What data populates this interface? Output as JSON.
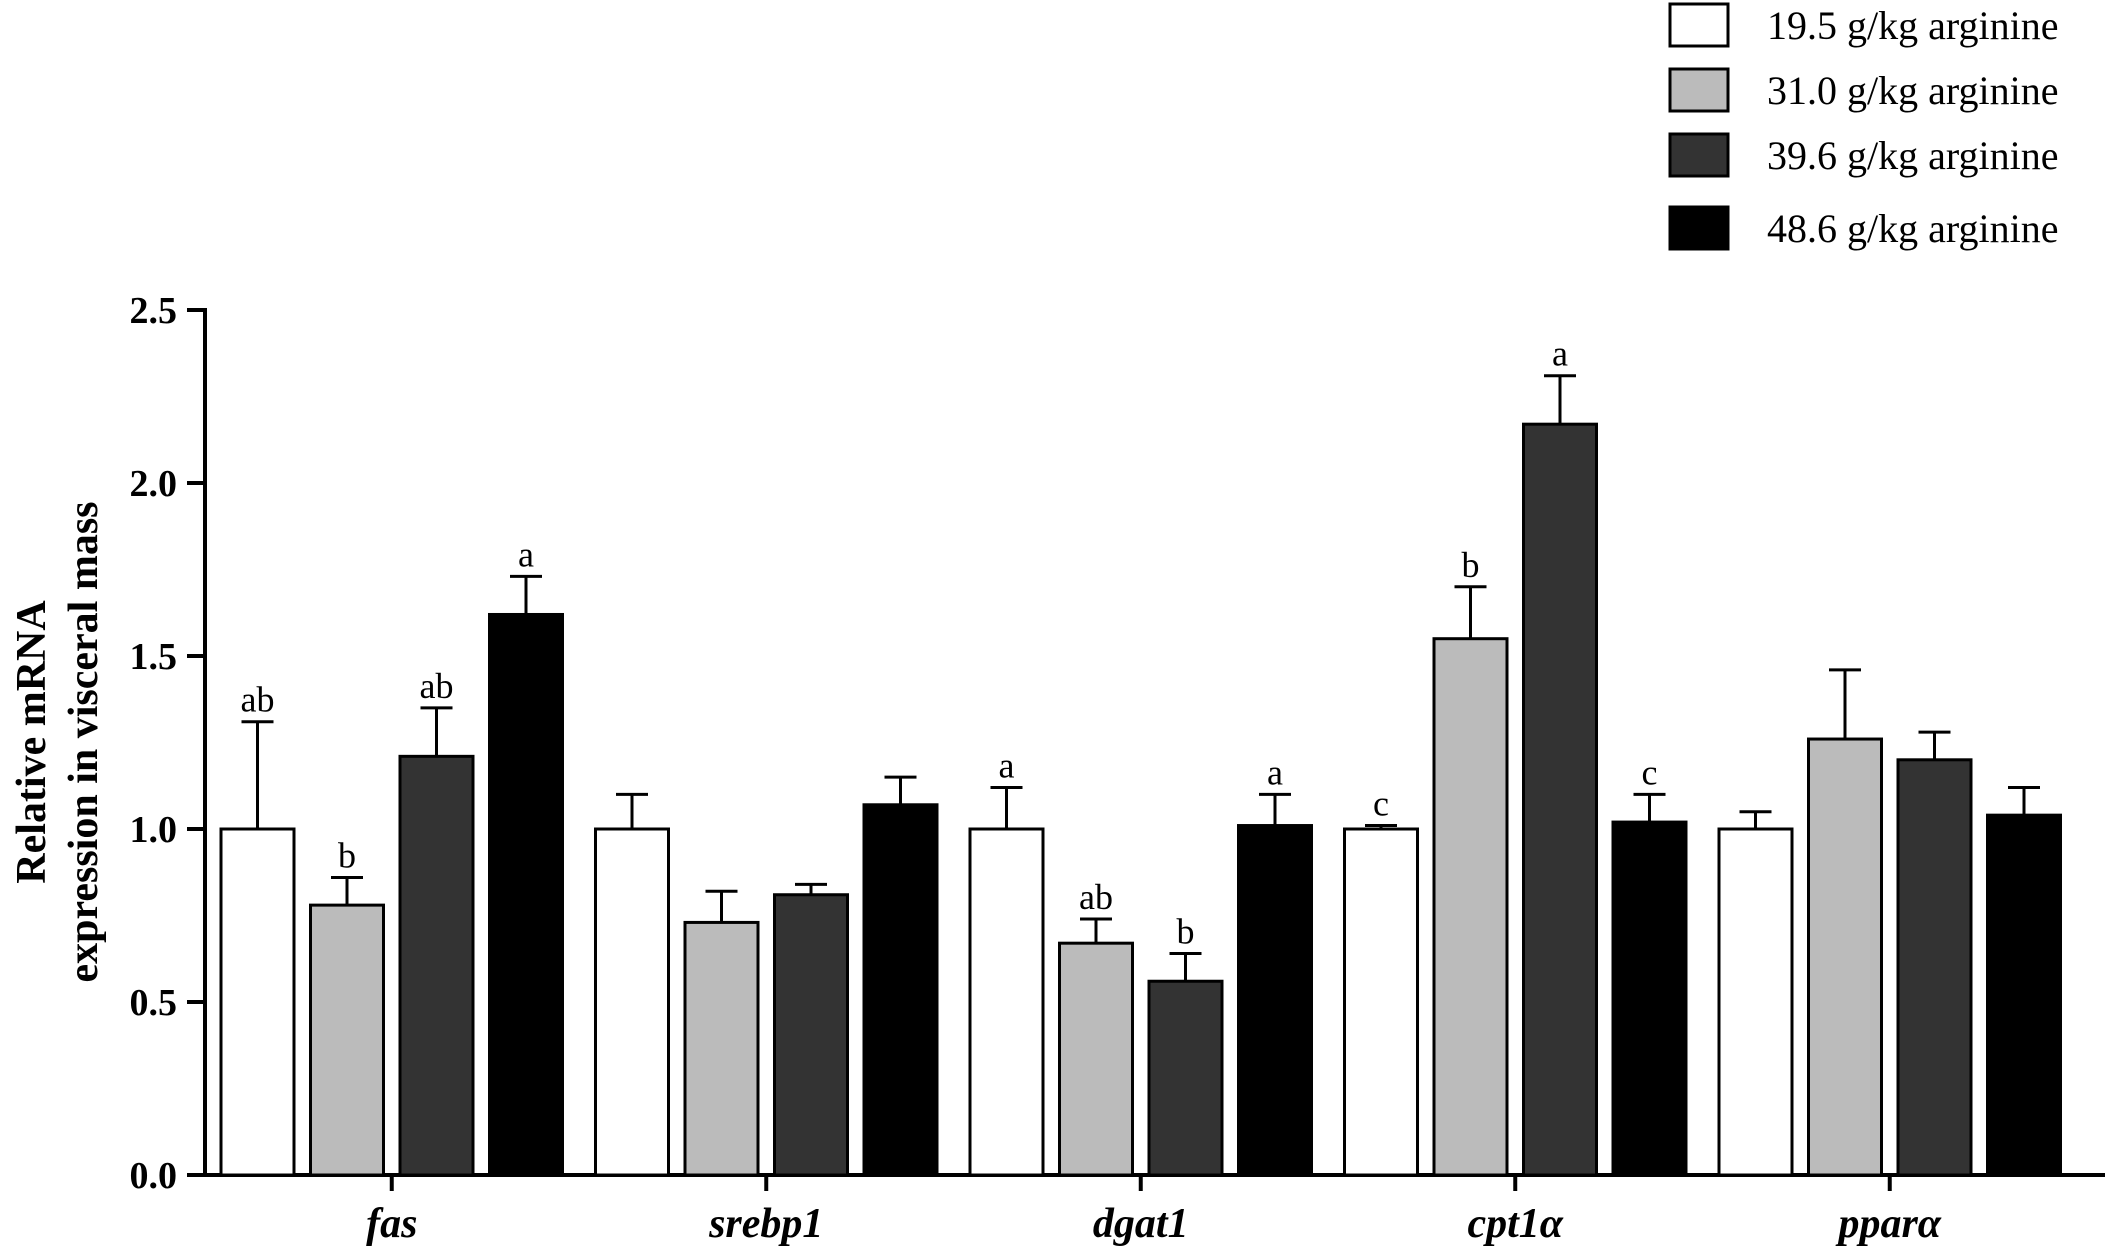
{
  "chart_data": {
    "type": "bar",
    "categories": [
      "fas",
      "srebp1",
      "dgat1",
      "cpt1α",
      "pparα"
    ],
    "ylabel_lines": [
      "Relative mRNA",
      "expression in visceral mass"
    ],
    "ylim": [
      0,
      2.5
    ],
    "yticks": [
      "0.0",
      "0.5",
      "1.0",
      "1.5",
      "2.0",
      "2.5"
    ],
    "legend_position": "top-right",
    "grid": false,
    "error_bars": true,
    "series": [
      {
        "name": "19.5 g/kg arginine",
        "color": "#ffffff",
        "values": [
          1.0,
          1.0,
          1.0,
          1.0,
          1.0
        ],
        "errors": [
          0.31,
          0.1,
          0.12,
          0.01,
          0.05
        ],
        "labels": [
          "ab",
          "",
          "a",
          "c",
          ""
        ]
      },
      {
        "name": "31.0 g/kg arginine",
        "color": "#bbbbbb",
        "values": [
          0.78,
          0.73,
          0.67,
          1.55,
          1.26
        ],
        "errors": [
          0.08,
          0.09,
          0.07,
          0.15,
          0.2
        ],
        "labels": [
          "b",
          "",
          "ab",
          "b",
          ""
        ]
      },
      {
        "name": "39.6 g/kg arginine",
        "color": "#333333",
        "values": [
          1.21,
          0.81,
          0.56,
          2.17,
          1.2
        ],
        "errors": [
          0.14,
          0.03,
          0.08,
          0.14,
          0.08
        ],
        "labels": [
          "ab",
          "",
          "b",
          "a",
          ""
        ]
      },
      {
        "name": "48.6 g/kg arginine",
        "color": "#000000",
        "values": [
          1.62,
          1.07,
          1.01,
          1.02,
          1.04
        ],
        "errors": [
          0.11,
          0.08,
          0.09,
          0.08,
          0.08
        ],
        "labels": [
          "a",
          "",
          "a",
          "c",
          ""
        ]
      }
    ]
  }
}
